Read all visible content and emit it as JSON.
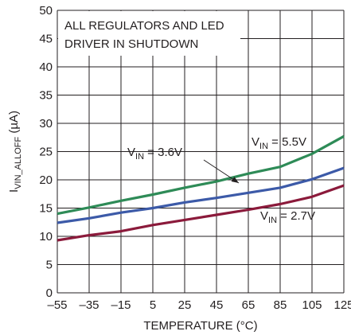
{
  "chart_data": {
    "type": "line",
    "xlabel": "TEMPERATURE (°C)",
    "ylabel": {
      "main": "I",
      "sub": "VIN_ALLOFF",
      "tail": " (µA)"
    },
    "xlim": [
      -55,
      125
    ],
    "ylim": [
      0,
      50
    ],
    "x_ticks": [
      -55,
      -35,
      -15,
      5,
      25,
      45,
      65,
      85,
      105,
      125
    ],
    "x_tick_labels": [
      "–55",
      "–35",
      "–15",
      "5",
      "25",
      "45",
      "65",
      "85",
      "105",
      "125"
    ],
    "y_ticks": [
      0,
      5,
      10,
      15,
      20,
      25,
      30,
      35,
      40,
      45,
      50
    ],
    "y_tick_labels": [
      "0",
      "5",
      "10",
      "15",
      "20",
      "25",
      "30",
      "35",
      "40",
      "45",
      "50"
    ],
    "grid": true,
    "x": [
      -55,
      -35,
      -15,
      5,
      25,
      45,
      65,
      85,
      105,
      125
    ],
    "series": [
      {
        "name": "VIN = 5.5V",
        "color": "#2e8b57",
        "values": [
          14.0,
          15.1,
          16.3,
          17.4,
          18.6,
          19.7,
          21.1,
          22.3,
          24.6,
          27.7
        ]
      },
      {
        "name": "VIN = 3.6V",
        "color": "#3c5aa8",
        "values": [
          12.4,
          13.2,
          14.2,
          15.0,
          16.0,
          16.8,
          17.7,
          18.6,
          20.1,
          22.1
        ]
      },
      {
        "name": "VIN = 2.7V",
        "color": "#8b1a3b",
        "values": [
          9.3,
          10.2,
          10.9,
          12.0,
          12.9,
          13.8,
          14.7,
          15.7,
          17.0,
          19.0
        ]
      }
    ],
    "annotations": {
      "box_line1": "ALL REGULATORS AND LED",
      "box_line2": "DRIVER IN SHUTDOWN",
      "v55": {
        "main": "V",
        "sub": "IN",
        "tail": " = 5.5V"
      },
      "v36": {
        "main": "V",
        "sub": "IN",
        "tail": " = 3.6V"
      },
      "v27": {
        "main": "V",
        "sub": "IN",
        "tail": " = 2.7V"
      }
    }
  }
}
